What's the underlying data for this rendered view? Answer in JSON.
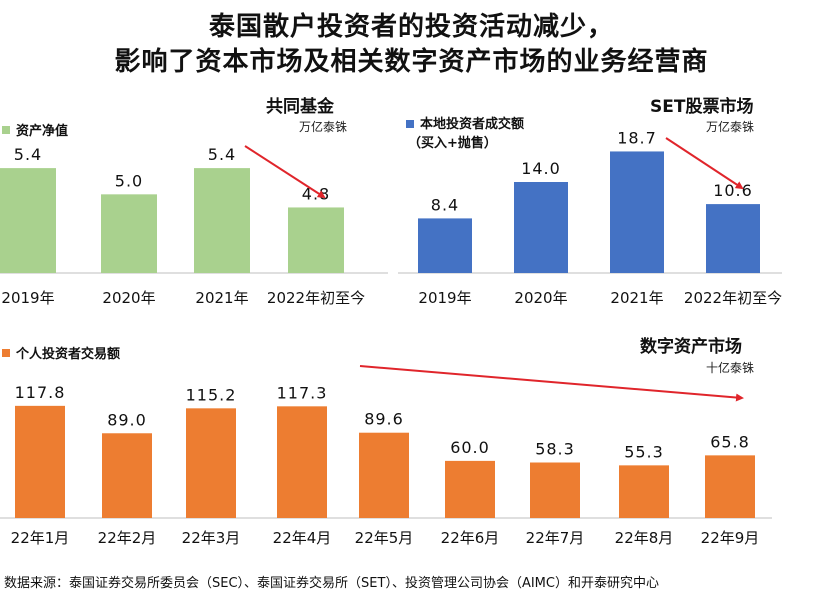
{
  "headline": {
    "line1": "泰国散户投资者的投资活动减少，",
    "line2": "影响了资本市场及相关数字资产市场的业务经营商"
  },
  "colors": {
    "green": "#a9d18e",
    "blue": "#4472c4",
    "orange": "#ed7d31",
    "arrow": "#e0252b",
    "label": "#111111"
  },
  "panels": {
    "fund": {
      "header": "共同基金",
      "unit": "万亿泰铢",
      "legend": "资产净值"
    },
    "set": {
      "header": "SET股票市场",
      "unit": "万亿泰铢",
      "legend_line1": "本地投资者成交额",
      "legend_line2": "（买入+抛售）"
    },
    "digital": {
      "header": "数字资产市场",
      "unit": "十亿泰铢",
      "legend": "个人投资者交易额"
    }
  },
  "chart_data": [
    {
      "type": "bar",
      "title": "共同基金",
      "categories": [
        "2019年",
        "2020年",
        "2021年",
        "2022年初至今"
      ],
      "series": [
        {
          "name": "资产净值",
          "values": [
            5.4,
            5.0,
            5.4,
            4.8
          ],
          "labels": [
            "5.4",
            "5.0",
            "5.4",
            "4.8"
          ]
        }
      ],
      "ylabel": "万亿泰铢",
      "ylim": [
        3.8,
        5.6
      ]
    },
    {
      "type": "bar",
      "title": "SET股票市场",
      "categories": [
        "2019年",
        "2020年",
        "2021年",
        "2022年初至今"
      ],
      "series": [
        {
          "name": "本地投资者成交额（买入+抛售）",
          "values": [
            8.4,
            14.0,
            18.7,
            10.6
          ],
          "labels": [
            "8.4",
            "14.0",
            "18.7",
            "10.6"
          ]
        }
      ],
      "ylabel": "万亿泰铢",
      "ylim": [
        0,
        20
      ]
    },
    {
      "type": "bar",
      "title": "数字资产市场",
      "categories": [
        "22年1月",
        "22年2月",
        "22年3月",
        "22年4月",
        "22年5月",
        "22年6月",
        "22年7月",
        "22年8月",
        "22年9月"
      ],
      "series": [
        {
          "name": "个人投资者交易额",
          "values": [
            117.8,
            89.0,
            115.2,
            117.3,
            89.6,
            60.0,
            58.3,
            55.3,
            65.8
          ],
          "labels": [
            "117.8",
            "89.0",
            "115.2",
            "117.3",
            "89.6",
            "60.0",
            "58.3",
            "55.3",
            "65.8"
          ]
        }
      ],
      "ylabel": "十亿泰铢",
      "ylim": [
        0,
        125
      ]
    }
  ],
  "source": "数据来源：泰国证券交易所委员会（SEC）、泰国证券交易所（SET）、投资管理公司协会（AIMC）和开泰研究中心"
}
